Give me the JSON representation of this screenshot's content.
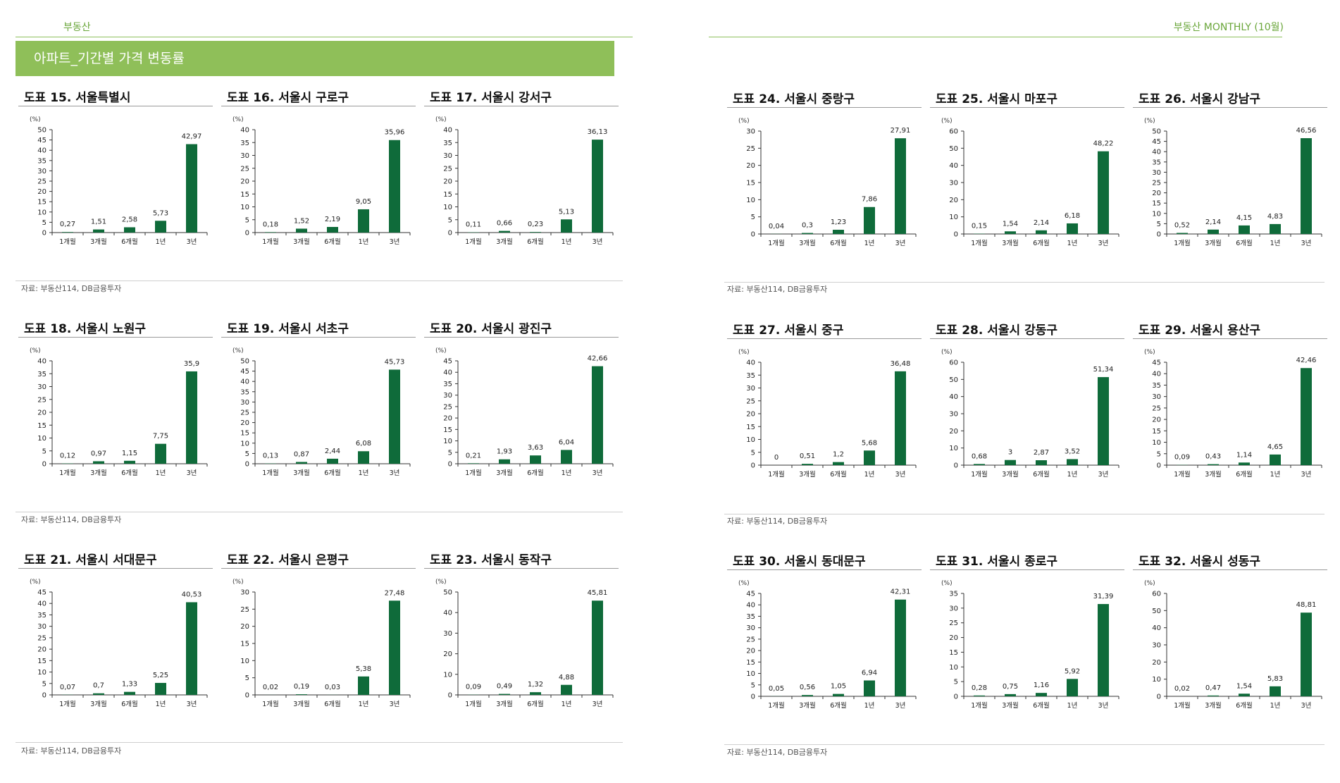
{
  "header": {
    "left_title": "부동산",
    "right_title": "부동산 MONTHLY (10월)",
    "banner": "아파트_기간별 가격 변동률"
  },
  "colors": {
    "bar": "#0f6b3a",
    "accent": "#8fbf59",
    "header_text": "#6aa63a"
  },
  "source": "자료: 부동산114, DB금융투자",
  "chart_data": [
    {
      "type": "bar",
      "title": "도표 15. 서울특별시",
      "unit": "(%)",
      "categories": [
        "1개월",
        "3개월",
        "6개월",
        "1년",
        "3년"
      ],
      "values": [
        0.27,
        1.51,
        2.58,
        5.73,
        42.97
      ],
      "labels": [
        "0,27",
        "1,51",
        "2,58",
        "5,73",
        "42,97"
      ],
      "ylim": [
        0,
        50
      ],
      "yticks": [
        0,
        5,
        10,
        15,
        20,
        25,
        30,
        35,
        40,
        45,
        50
      ]
    },
    {
      "type": "bar",
      "title": "도표 16. 서울시 구로구",
      "unit": "(%)",
      "categories": [
        "1개월",
        "3개월",
        "6개월",
        "1년",
        "3년"
      ],
      "values": [
        0.18,
        1.52,
        2.19,
        9.05,
        35.96
      ],
      "labels": [
        "0,18",
        "1,52",
        "2,19",
        "9,05",
        "35,96"
      ],
      "ylim": [
        0,
        40
      ],
      "yticks": [
        0,
        5,
        10,
        15,
        20,
        25,
        30,
        35,
        40
      ]
    },
    {
      "type": "bar",
      "title": "도표 17. 서울시 강서구",
      "unit": "(%)",
      "categories": [
        "1개월",
        "3개월",
        "6개월",
        "1년",
        "3년"
      ],
      "values": [
        0.11,
        0.66,
        0.23,
        5.13,
        36.13
      ],
      "labels": [
        "0,11",
        "0,66",
        "0,23",
        "5,13",
        "36,13"
      ],
      "ylim": [
        0,
        40
      ],
      "yticks": [
        0,
        5,
        10,
        15,
        20,
        25,
        30,
        35,
        40
      ]
    },
    {
      "type": "bar",
      "title": "도표 18. 서울시 노원구",
      "unit": "(%)",
      "categories": [
        "1개월",
        "3개월",
        "6개월",
        "1년",
        "3년"
      ],
      "values": [
        0.12,
        0.97,
        1.15,
        7.75,
        35.9
      ],
      "labels": [
        "0,12",
        "0,97",
        "1,15",
        "7,75",
        "35,9"
      ],
      "ylim": [
        0,
        40
      ],
      "yticks": [
        0,
        5,
        10,
        15,
        20,
        25,
        30,
        35,
        40
      ]
    },
    {
      "type": "bar",
      "title": "도표 19. 서울시 서초구",
      "unit": "(%)",
      "categories": [
        "1개월",
        "3개월",
        "6개월",
        "1년",
        "3년"
      ],
      "values": [
        0.13,
        0.87,
        2.44,
        6.08,
        45.73
      ],
      "labels": [
        "0,13",
        "0,87",
        "2,44",
        "6,08",
        "45,73"
      ],
      "ylim": [
        0,
        50
      ],
      "yticks": [
        0,
        5,
        10,
        15,
        20,
        25,
        30,
        35,
        40,
        45,
        50
      ]
    },
    {
      "type": "bar",
      "title": "도표 20. 서울시 광진구",
      "unit": "(%)",
      "categories": [
        "1개월",
        "3개월",
        "6개월",
        "1년",
        "3년"
      ],
      "values": [
        0.21,
        1.93,
        3.63,
        6.04,
        42.66
      ],
      "labels": [
        "0,21",
        "1,93",
        "3,63",
        "6,04",
        "42,66"
      ],
      "ylim": [
        0,
        45
      ],
      "yticks": [
        0,
        5,
        10,
        15,
        20,
        25,
        30,
        35,
        40,
        45
      ]
    },
    {
      "type": "bar",
      "title": "도표 21. 서울시 서대문구",
      "unit": "(%)",
      "categories": [
        "1개월",
        "3개월",
        "6개월",
        "1년",
        "3년"
      ],
      "values": [
        0.07,
        0.7,
        1.33,
        5.25,
        40.53
      ],
      "labels": [
        "0,07",
        "0,7",
        "1,33",
        "5,25",
        "40,53"
      ],
      "ylim": [
        0,
        45
      ],
      "yticks": [
        0,
        5,
        10,
        15,
        20,
        25,
        30,
        35,
        40,
        45
      ]
    },
    {
      "type": "bar",
      "title": "도표 22. 서울시 은평구",
      "unit": "(%)",
      "categories": [
        "1개월",
        "3개월",
        "6개월",
        "1년",
        "3년"
      ],
      "values": [
        0.02,
        0.19,
        0.03,
        5.38,
        27.48
      ],
      "labels": [
        "0,02",
        "0,19",
        "0,03",
        "5,38",
        "27,48"
      ],
      "ylim": [
        0,
        30
      ],
      "yticks": [
        0,
        5,
        10,
        15,
        20,
        25,
        30
      ]
    },
    {
      "type": "bar",
      "title": "도표 23. 서울시 동작구",
      "unit": "(%)",
      "categories": [
        "1개월",
        "3개월",
        "6개월",
        "1년",
        "3년"
      ],
      "values": [
        0.09,
        0.49,
        1.32,
        4.88,
        45.81
      ],
      "labels": [
        "0,09",
        "0,49",
        "1,32",
        "4,88",
        "45,81"
      ],
      "ylim": [
        0,
        50
      ],
      "yticks": [
        0,
        10,
        20,
        30,
        40,
        50
      ]
    },
    {
      "type": "bar",
      "title": "도표 24. 서울시 중랑구",
      "unit": "(%)",
      "categories": [
        "1개월",
        "3개월",
        "6개월",
        "1년",
        "3년"
      ],
      "values": [
        0.04,
        0.3,
        1.23,
        7.86,
        27.91
      ],
      "labels": [
        "0,04",
        "0,3",
        "1,23",
        "7,86",
        "27,91"
      ],
      "ylim": [
        0,
        30
      ],
      "yticks": [
        0,
        5,
        10,
        15,
        20,
        25,
        30
      ]
    },
    {
      "type": "bar",
      "title": "도표 25. 서울시 마포구",
      "unit": "(%)",
      "categories": [
        "1개월",
        "3개월",
        "6개월",
        "1년",
        "3년"
      ],
      "values": [
        0.15,
        1.54,
        2.14,
        6.18,
        48.22
      ],
      "labels": [
        "0,15",
        "1,54",
        "2,14",
        "6,18",
        "48,22"
      ],
      "ylim": [
        0,
        60
      ],
      "yticks": [
        0,
        10,
        20,
        30,
        40,
        50,
        60
      ]
    },
    {
      "type": "bar",
      "title": "도표 26. 서울시 강남구",
      "unit": "(%)",
      "categories": [
        "1개월",
        "3개월",
        "6개월",
        "1년",
        "3년"
      ],
      "values": [
        0.52,
        2.14,
        4.15,
        4.83,
        46.56
      ],
      "labels": [
        "0,52",
        "2,14",
        "4,15",
        "4,83",
        "46,56"
      ],
      "ylim": [
        0,
        50
      ],
      "yticks": [
        0,
        5,
        10,
        15,
        20,
        25,
        30,
        35,
        40,
        45,
        50
      ]
    },
    {
      "type": "bar",
      "title": "도표 27. 서울시 중구",
      "unit": "(%)",
      "categories": [
        "1개월",
        "3개월",
        "6개월",
        "1년",
        "3년"
      ],
      "values": [
        0,
        0.51,
        1.2,
        5.68,
        36.48
      ],
      "labels": [
        "0",
        "0,51",
        "1,2",
        "5,68",
        "36,48"
      ],
      "ylim": [
        0,
        40
      ],
      "yticks": [
        0,
        5,
        10,
        15,
        20,
        25,
        30,
        35,
        40
      ]
    },
    {
      "type": "bar",
      "title": "도표 28. 서울시 강동구",
      "unit": "(%)",
      "categories": [
        "1개월",
        "3개월",
        "6개월",
        "1년",
        "3년"
      ],
      "values": [
        0.68,
        3,
        2.87,
        3.52,
        51.34
      ],
      "labels": [
        "0,68",
        "3",
        "2,87",
        "3,52",
        "51,34"
      ],
      "ylim": [
        0,
        60
      ],
      "yticks": [
        0,
        10,
        20,
        30,
        40,
        50,
        60
      ]
    },
    {
      "type": "bar",
      "title": "도표 29. 서울시 용산구",
      "unit": "(%)",
      "categories": [
        "1개월",
        "3개월",
        "6개월",
        "1년",
        "3년"
      ],
      "values": [
        0.09,
        0.43,
        1.14,
        4.65,
        42.46
      ],
      "labels": [
        "0,09",
        "0,43",
        "1,14",
        "4,65",
        "42,46"
      ],
      "ylim": [
        0,
        45
      ],
      "yticks": [
        0,
        5,
        10,
        15,
        20,
        25,
        30,
        35,
        40,
        45
      ]
    },
    {
      "type": "bar",
      "title": "도표 30. 서울시 동대문구",
      "unit": "(%)",
      "categories": [
        "1개월",
        "3개월",
        "6개월",
        "1년",
        "3년"
      ],
      "values": [
        0.05,
        0.56,
        1.05,
        6.94,
        42.31
      ],
      "labels": [
        "0,05",
        "0,56",
        "1,05",
        "6,94",
        "42,31"
      ],
      "ylim": [
        0,
        45
      ],
      "yticks": [
        0,
        5,
        10,
        15,
        20,
        25,
        30,
        35,
        40,
        45
      ]
    },
    {
      "type": "bar",
      "title": "도표 31. 서울시 종로구",
      "unit": "(%)",
      "categories": [
        "1개월",
        "3개월",
        "6개월",
        "1년",
        "3년"
      ],
      "values": [
        0.28,
        0.75,
        1.16,
        5.92,
        31.39
      ],
      "labels": [
        "0,28",
        "0,75",
        "1,16",
        "5,92",
        "31,39"
      ],
      "ylim": [
        0,
        35
      ],
      "yticks": [
        0,
        5,
        10,
        15,
        20,
        25,
        30,
        35
      ]
    },
    {
      "type": "bar",
      "title": "도표 32. 서울시 성동구",
      "unit": "(%)",
      "categories": [
        "1개월",
        "3개월",
        "6개월",
        "1년",
        "3년"
      ],
      "values": [
        0.02,
        0.47,
        1.54,
        5.83,
        48.81
      ],
      "labels": [
        "0,02",
        "0,47",
        "1,54",
        "5,83",
        "48,81"
      ],
      "ylim": [
        0,
        60
      ],
      "yticks": [
        0,
        10,
        20,
        30,
        40,
        50,
        60
      ]
    }
  ]
}
